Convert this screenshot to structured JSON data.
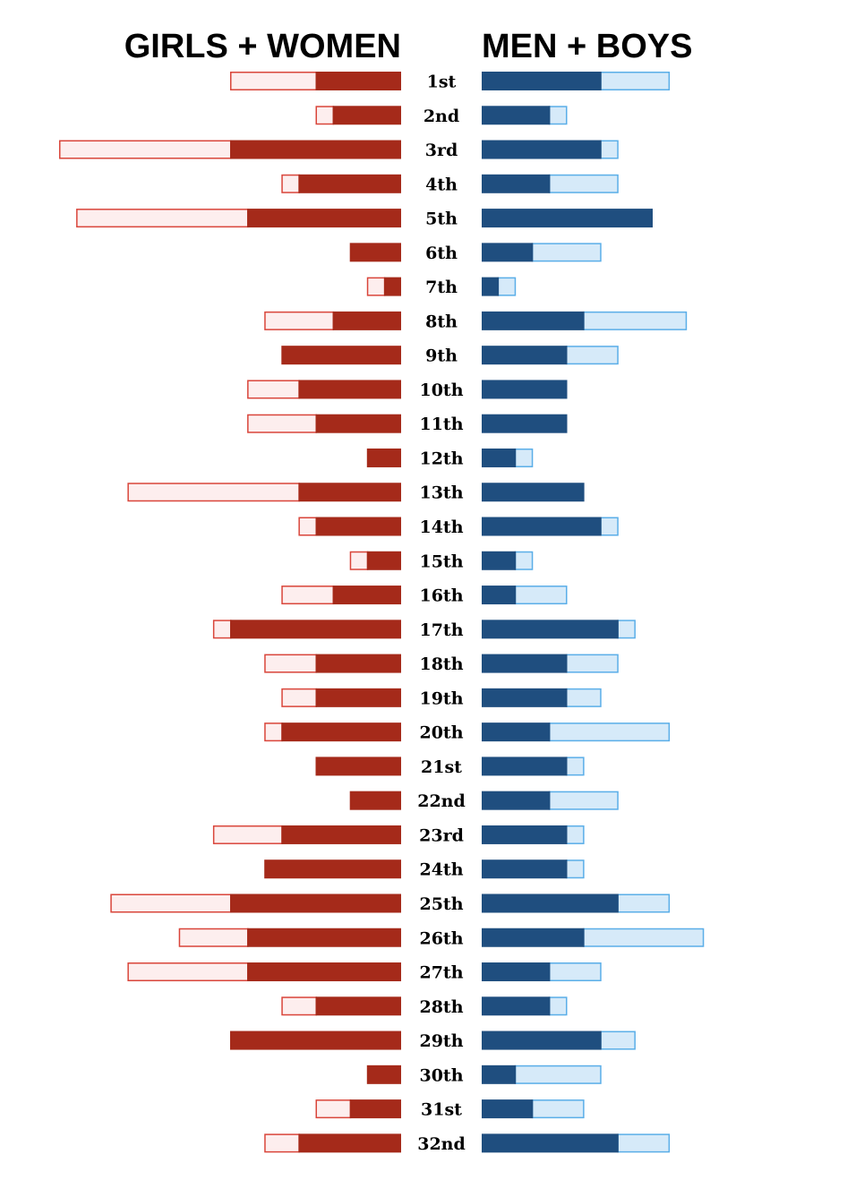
{
  "chart_data": {
    "type": "bar",
    "layout": "butterfly / back-to-back horizontal bars",
    "left_title": "GIRLS + WOMEN",
    "right_title": "MEN + BOYS",
    "colors": {
      "women_solid": "#a52a1a",
      "women_light": "#fdeeee",
      "women_light_border": "#d9453a",
      "men_solid": "#1f4e7f",
      "men_light": "#d6eaf9",
      "men_light_border": "#5aaee8"
    },
    "categories": [
      "1st",
      "2nd",
      "3rd",
      "4th",
      "5th",
      "6th",
      "7th",
      "8th",
      "9th",
      "10th",
      "11th",
      "12th",
      "13th",
      "14th",
      "15th",
      "16th",
      "17th",
      "18th",
      "19th",
      "20th",
      "21st",
      "22nd",
      "23rd",
      "24th",
      "25th",
      "26th",
      "27th",
      "28th",
      "29th",
      "30th",
      "31st",
      "32nd"
    ],
    "series": [
      {
        "side": "left",
        "kind": "solid",
        "values": [
          5,
          4,
          10,
          6,
          9,
          3,
          1,
          4,
          7,
          6,
          5,
          2,
          6,
          5,
          2,
          4,
          10,
          5,
          5,
          7,
          5,
          3,
          7,
          8,
          10,
          9,
          9,
          5,
          10,
          2,
          3,
          6
        ]
      },
      {
        "side": "left",
        "kind": "light",
        "values": [
          5,
          1,
          10,
          1,
          10,
          0,
          1,
          4,
          0,
          3,
          4,
          0,
          10,
          1,
          1,
          3,
          1,
          3,
          2,
          1,
          0,
          0,
          4,
          0,
          7,
          4,
          7,
          2,
          0,
          0,
          2,
          2
        ]
      },
      {
        "side": "right",
        "kind": "solid",
        "values": [
          7,
          4,
          7,
          4,
          10,
          3,
          1,
          6,
          5,
          5,
          5,
          2,
          6,
          7,
          2,
          2,
          8,
          5,
          5,
          4,
          5,
          4,
          5,
          5,
          8,
          6,
          4,
          4,
          7,
          2,
          3,
          8
        ]
      },
      {
        "side": "right",
        "kind": "light",
        "values": [
          4,
          1,
          1,
          4,
          0,
          4,
          1,
          6,
          3,
          0,
          0,
          1,
          0,
          1,
          1,
          3,
          1,
          3,
          2,
          7,
          1,
          4,
          1,
          1,
          3,
          7,
          3,
          1,
          2,
          5,
          3,
          3
        ]
      }
    ]
  }
}
